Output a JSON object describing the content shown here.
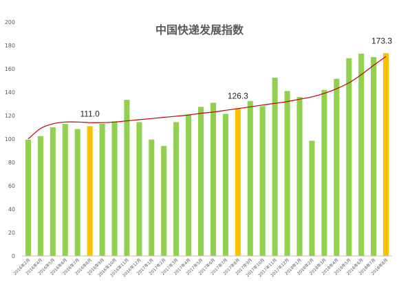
{
  "chart_data": {
    "type": "bar",
    "title": "中国快递发展指数",
    "xlabel": "",
    "ylabel": "",
    "ylim": [
      0,
      200
    ],
    "yticks": [
      "0",
      "20",
      "40",
      "60",
      "80",
      "100",
      "120",
      "140",
      "160",
      "180",
      "200"
    ],
    "grid": false,
    "categories": [
      "2016年2月",
      "2016年4月",
      "2016年5月",
      "2016年6月",
      "2016年7月",
      "2016年8月",
      "2016年9月",
      "2016年10月",
      "2016年11月",
      "2016年12月",
      "2017年1月",
      "2017年2月",
      "2017年3月",
      "2017年4月",
      "2017年5月",
      "2017年6月",
      "2017年7月",
      "2017年8月",
      "2017年9月",
      "2017年10月",
      "2017年11月",
      "2017年12月",
      "2018年1月",
      "2018年2月",
      "2018年3月",
      "2018年4月",
      "2018年5月",
      "2018年6月",
      "2018年7月",
      "2018年8月"
    ],
    "values": [
      99.5,
      102.5,
      110,
      113,
      108.5,
      111.0,
      113,
      115,
      133.5,
      114.5,
      99.5,
      94,
      114.5,
      121,
      127.5,
      131,
      121.5,
      126.3,
      132.5,
      128,
      152.5,
      141,
      136,
      98.5,
      142,
      151.5,
      169,
      173,
      170,
      173.3
    ],
    "highlight_indices": [
      5,
      17,
      29
    ],
    "annotations": [
      {
        "index": 5,
        "text": "111.0"
      },
      {
        "index": 17,
        "text": "126.3"
      },
      {
        "index": 29,
        "text": "173.3"
      }
    ],
    "trendline": [
      [
        0,
        100
      ],
      [
        1,
        109
      ],
      [
        2,
        113
      ],
      [
        3,
        114.5
      ],
      [
        4,
        114.5
      ],
      [
        5,
        114
      ],
      [
        6,
        114
      ],
      [
        7,
        114.5
      ],
      [
        8,
        115.5
      ],
      [
        9,
        116.5
      ],
      [
        10,
        117.5
      ],
      [
        11,
        118.5
      ],
      [
        12,
        119.5
      ],
      [
        13,
        120.5
      ],
      [
        14,
        122
      ],
      [
        15,
        123
      ],
      [
        16,
        124.5
      ],
      [
        17,
        126
      ],
      [
        18,
        127.5
      ],
      [
        19,
        129
      ],
      [
        20,
        130.5
      ],
      [
        21,
        132
      ],
      [
        22,
        134
      ],
      [
        23,
        136
      ],
      [
        24,
        139
      ],
      [
        25,
        143
      ],
      [
        26,
        148
      ],
      [
        27,
        155
      ],
      [
        28,
        163
      ],
      [
        29,
        170.5
      ]
    ],
    "colors": {
      "bar": "#92d050",
      "highlight": "#ffc000",
      "trendline": "#c00000",
      "axis": "#bfbfbf",
      "text": "#595959"
    }
  }
}
